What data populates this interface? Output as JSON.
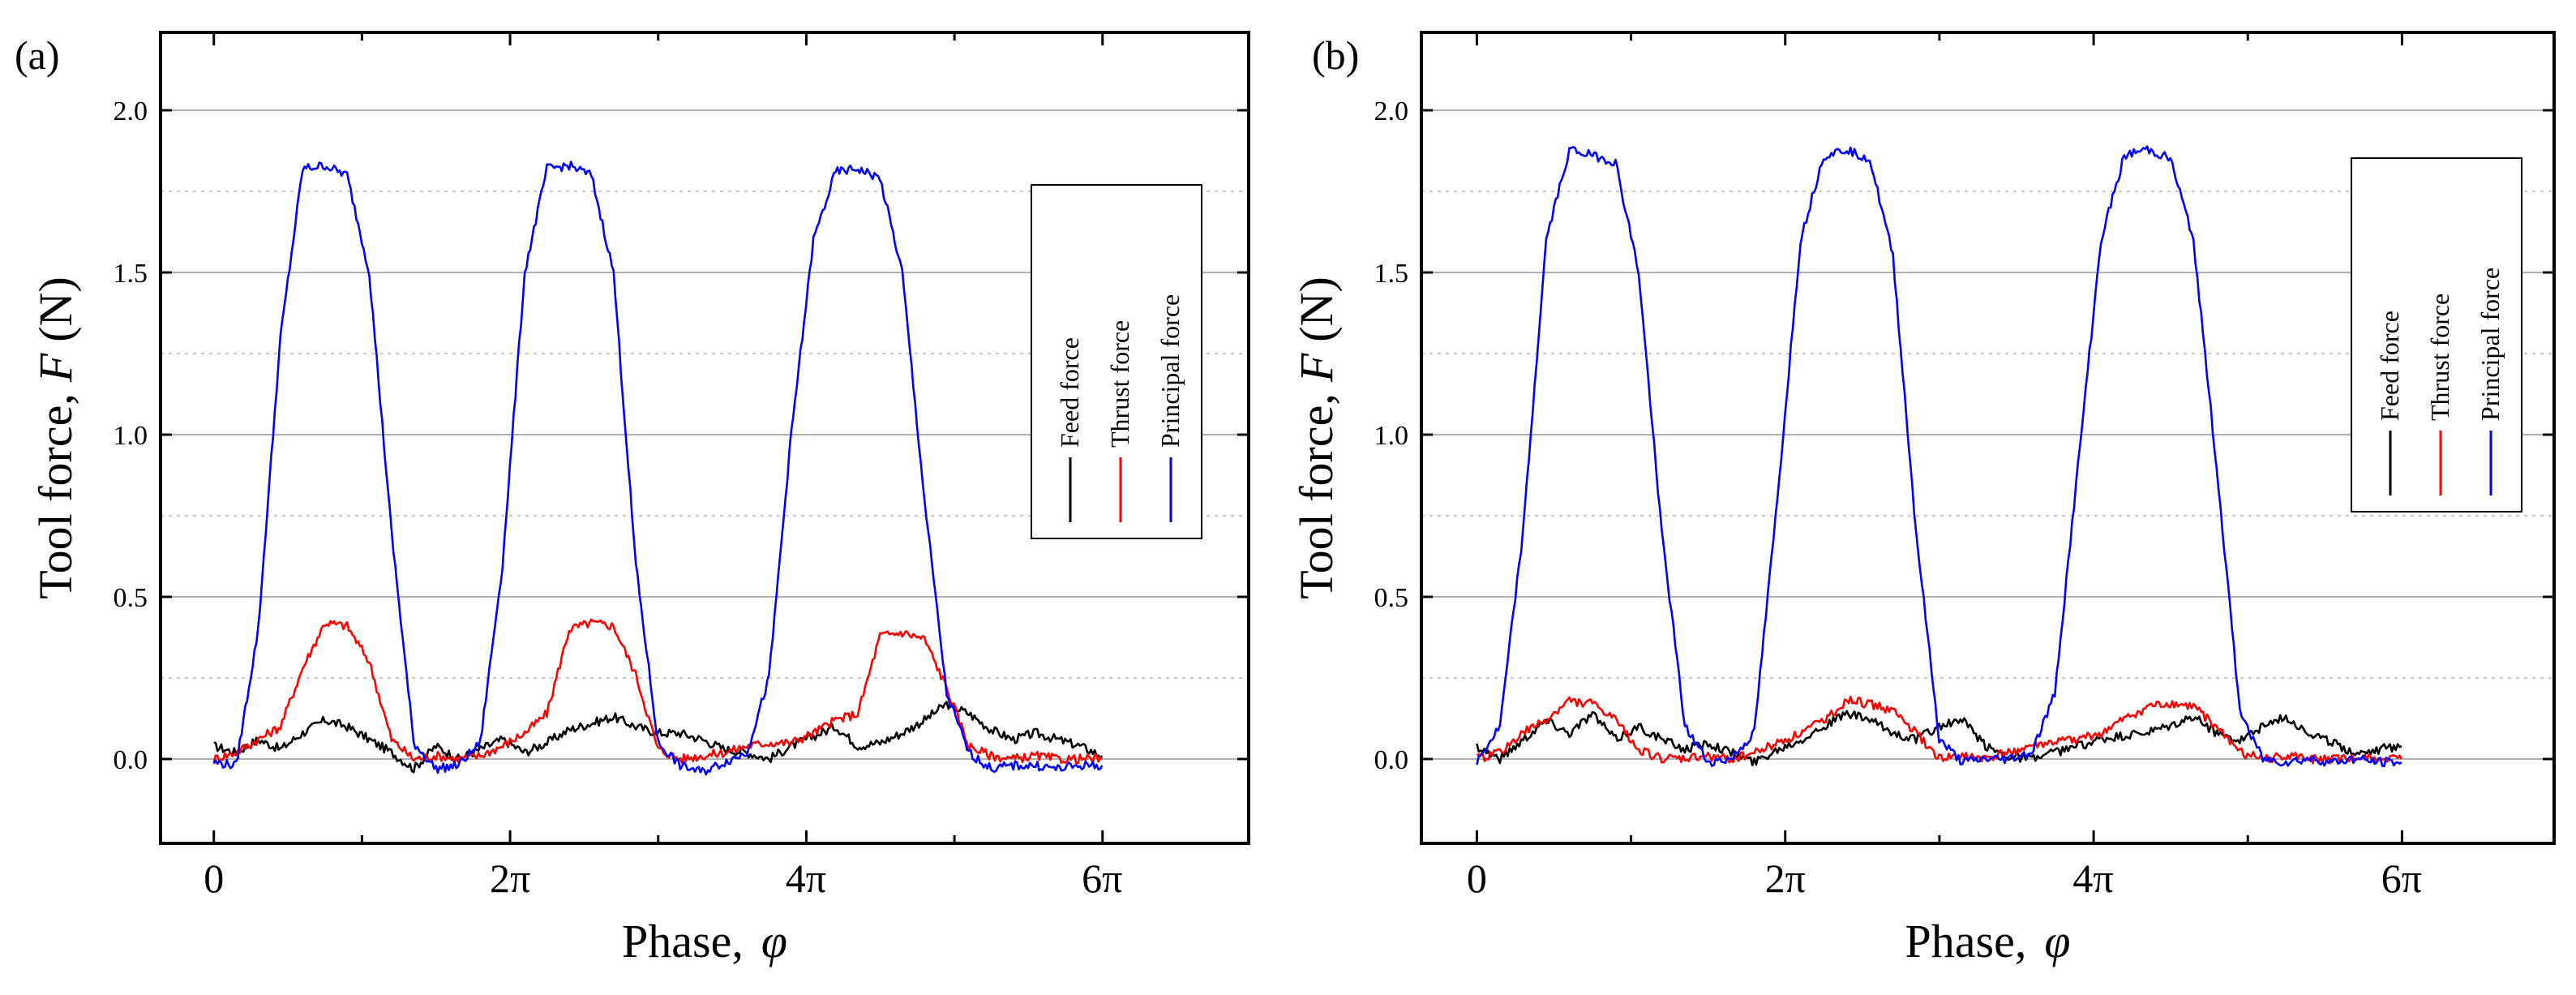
{
  "chart_data": [
    {
      "panel_label": "(a)",
      "type": "line",
      "xlabel": "Phase,",
      "xlabel_symbol": "φ",
      "ylabel": "Tool force,",
      "ylabel_symbol": "F",
      "ylabel_unit": "(N)",
      "xlim": [
        -0.12,
        2.33
      ],
      "ylim": [
        -0.26,
        2.24
      ],
      "x_unit": "multiples of pi",
      "x_ticks": [
        {
          "value": 0,
          "label": "0"
        },
        {
          "value": 0.667,
          "label": "2π"
        },
        {
          "value": 1.333,
          "label": "4π"
        },
        {
          "value": 2.0,
          "label": "6π"
        }
      ],
      "y_ticks": [
        {
          "value": 0.0,
          "label": "0.0"
        },
        {
          "value": 0.5,
          "label": "0.5"
        },
        {
          "value": 1.0,
          "label": "1.0"
        },
        {
          "value": 1.5,
          "label": "1.5"
        },
        {
          "value": 2.0,
          "label": "2.0"
        }
      ],
      "grid": true,
      "legend_position": "right",
      "series": [
        {
          "name": "Feed force",
          "color": "#000000",
          "x": [
            0.0,
            0.05,
            0.1,
            0.15,
            0.2,
            0.25,
            0.3,
            0.35,
            0.4,
            0.45,
            0.5,
            0.55,
            0.6,
            0.65,
            0.7,
            0.75,
            0.8,
            0.85,
            0.9,
            0.95,
            1.0,
            1.05,
            1.1,
            1.15,
            1.2,
            1.25,
            1.3,
            1.35,
            1.4,
            1.45,
            1.5,
            1.55,
            1.6,
            1.65,
            1.7,
            1.75,
            1.8,
            1.85,
            1.9,
            1.95,
            2.0
          ],
          "y": [
            0.04,
            0.02,
            0.06,
            0.03,
            0.08,
            0.12,
            0.1,
            0.06,
            0.02,
            -0.03,
            0.04,
            0.0,
            0.03,
            0.06,
            0.02,
            0.05,
            0.09,
            0.11,
            0.13,
            0.1,
            0.08,
            0.08,
            0.06,
            0.03,
            0.02,
            0.0,
            0.04,
            0.07,
            0.1,
            0.04,
            0.05,
            0.08,
            0.12,
            0.17,
            0.14,
            0.09,
            0.06,
            0.08,
            0.06,
            0.04,
            0.01
          ]
        },
        {
          "name": "Thrust force",
          "color": "#ff0000",
          "x": [
            0.0,
            0.05,
            0.1,
            0.15,
            0.2,
            0.25,
            0.3,
            0.35,
            0.4,
            0.45,
            0.5,
            0.55,
            0.6,
            0.65,
            0.7,
            0.75,
            0.8,
            0.85,
            0.9,
            0.95,
            1.0,
            1.05,
            1.1,
            1.15,
            1.2,
            1.25,
            1.3,
            1.35,
            1.4,
            1.45,
            1.5,
            1.55,
            1.6,
            1.65,
            1.7,
            1.75,
            1.8,
            1.85,
            1.9,
            1.95,
            2.0
          ],
          "y": [
            0.0,
            0.02,
            0.06,
            0.1,
            0.28,
            0.42,
            0.41,
            0.3,
            0.06,
            0.0,
            0.01,
            0.0,
            0.01,
            0.04,
            0.08,
            0.14,
            0.4,
            0.42,
            0.41,
            0.26,
            0.03,
            0.0,
            0.01,
            0.02,
            0.04,
            0.05,
            0.05,
            0.08,
            0.12,
            0.14,
            0.38,
            0.39,
            0.37,
            0.22,
            0.04,
            0.01,
            0.0,
            0.01,
            0.0,
            0.0,
            0.0
          ]
        },
        {
          "name": "Principal force",
          "color": "#0000ff",
          "x": [
            0.0,
            0.05,
            0.1,
            0.15,
            0.2,
            0.25,
            0.3,
            0.35,
            0.4,
            0.45,
            0.5,
            0.55,
            0.6,
            0.65,
            0.7,
            0.75,
            0.8,
            0.85,
            0.9,
            0.95,
            1.0,
            1.05,
            1.1,
            1.15,
            1.2,
            1.25,
            1.3,
            1.35,
            1.4,
            1.45,
            1.5,
            1.55,
            1.6,
            1.65,
            1.7,
            1.75,
            1.8,
            1.85,
            1.9,
            1.95,
            2.0
          ],
          "y": [
            -0.01,
            -0.02,
            0.4,
            1.3,
            1.82,
            1.83,
            1.8,
            1.5,
            0.7,
            0.05,
            -0.03,
            -0.02,
            0.05,
            0.6,
            1.5,
            1.82,
            1.83,
            1.8,
            1.5,
            0.6,
            0.05,
            -0.02,
            -0.04,
            -0.01,
            0.02,
            0.25,
            1.0,
            1.6,
            1.81,
            1.82,
            1.79,
            1.5,
            0.8,
            0.2,
            0.02,
            -0.03,
            -0.02,
            -0.02,
            -0.03,
            -0.02,
            -0.02
          ]
        }
      ]
    },
    {
      "panel_label": "(b)",
      "type": "line",
      "xlabel": "Phase,",
      "xlabel_symbol": "φ",
      "ylabel": "Tool force,",
      "ylabel_symbol": "F",
      "ylabel_unit": "(N)",
      "xlim": [
        -0.12,
        2.33
      ],
      "ylim": [
        -0.26,
        2.24
      ],
      "x_unit": "multiples of pi",
      "x_ticks": [
        {
          "value": 0,
          "label": "0"
        },
        {
          "value": 0.667,
          "label": "2π"
        },
        {
          "value": 1.333,
          "label": "4π"
        },
        {
          "value": 2.0,
          "label": "6π"
        }
      ],
      "y_ticks": [
        {
          "value": 0.0,
          "label": "0.0"
        },
        {
          "value": 0.5,
          "label": "0.5"
        },
        {
          "value": 1.0,
          "label": "1.0"
        },
        {
          "value": 1.5,
          "label": "1.5"
        },
        {
          "value": 2.0,
          "label": "2.0"
        }
      ],
      "grid": true,
      "legend_position": "right",
      "series": [
        {
          "name": "Feed force",
          "color": "#000000",
          "x": [
            0.0,
            0.05,
            0.1,
            0.15,
            0.2,
            0.25,
            0.3,
            0.35,
            0.4,
            0.45,
            0.5,
            0.55,
            0.6,
            0.65,
            0.7,
            0.75,
            0.8,
            0.85,
            0.9,
            0.95,
            1.0,
            1.05,
            1.1,
            1.15,
            1.2,
            1.25,
            1.3,
            1.35,
            1.4,
            1.45,
            1.5,
            1.55,
            1.6,
            1.65,
            1.7,
            1.75,
            1.8,
            1.85,
            1.9,
            1.95,
            2.0
          ],
          "y": [
            0.04,
            0.0,
            0.06,
            0.12,
            0.08,
            0.14,
            0.06,
            0.1,
            0.06,
            0.03,
            0.05,
            0.02,
            -0.01,
            0.03,
            0.06,
            0.1,
            0.14,
            0.12,
            0.08,
            0.06,
            0.1,
            0.12,
            0.04,
            0.01,
            0.0,
            0.02,
            0.04,
            0.06,
            0.07,
            0.08,
            0.1,
            0.13,
            0.08,
            0.06,
            0.1,
            0.13,
            0.08,
            0.05,
            0.02,
            0.03,
            0.04
          ]
        },
        {
          "name": "Thrust force",
          "color": "#ff0000",
          "x": [
            0.0,
            0.05,
            0.1,
            0.15,
            0.2,
            0.25,
            0.3,
            0.35,
            0.4,
            0.45,
            0.5,
            0.55,
            0.6,
            0.65,
            0.7,
            0.75,
            0.8,
            0.85,
            0.9,
            0.95,
            1.0,
            1.05,
            1.1,
            1.15,
            1.2,
            1.25,
            1.3,
            1.35,
            1.4,
            1.45,
            1.5,
            1.55,
            1.6,
            1.65,
            1.7,
            1.75,
            1.8,
            1.85,
            1.9,
            1.95,
            2.0
          ],
          "y": [
            0.0,
            0.02,
            0.08,
            0.12,
            0.18,
            0.17,
            0.12,
            0.03,
            0.0,
            0.0,
            0.01,
            0.0,
            0.02,
            0.05,
            0.08,
            0.12,
            0.18,
            0.17,
            0.15,
            0.08,
            0.0,
            0.01,
            0.0,
            0.02,
            0.04,
            0.05,
            0.06,
            0.08,
            0.12,
            0.16,
            0.17,
            0.16,
            0.1,
            0.02,
            0.0,
            0.01,
            0.0,
            0.0,
            0.0,
            0.0,
            0.0
          ]
        },
        {
          "name": "Principal force",
          "color": "#0000ff",
          "x": [
            0.0,
            0.05,
            0.1,
            0.15,
            0.2,
            0.25,
            0.3,
            0.35,
            0.4,
            0.45,
            0.5,
            0.55,
            0.6,
            0.65,
            0.7,
            0.75,
            0.8,
            0.85,
            0.9,
            0.95,
            1.0,
            1.05,
            1.1,
            1.15,
            1.2,
            1.25,
            1.3,
            1.35,
            1.4,
            1.45,
            1.5,
            1.55,
            1.6,
            1.65,
            1.7,
            1.75,
            1.8,
            1.85,
            1.9,
            1.95,
            2.0
          ],
          "y": [
            -0.01,
            0.1,
            0.7,
            1.6,
            1.88,
            1.86,
            1.84,
            1.5,
            0.7,
            0.1,
            -0.01,
            0.0,
            0.08,
            0.8,
            1.6,
            1.86,
            1.88,
            1.85,
            1.55,
            0.7,
            0.06,
            -0.01,
            0.0,
            0.0,
            0.02,
            0.2,
            0.9,
            1.6,
            1.86,
            1.88,
            1.85,
            1.6,
            0.9,
            0.15,
            0.0,
            -0.01,
            0.0,
            -0.01,
            0.0,
            -0.01,
            -0.01
          ]
        }
      ]
    }
  ]
}
